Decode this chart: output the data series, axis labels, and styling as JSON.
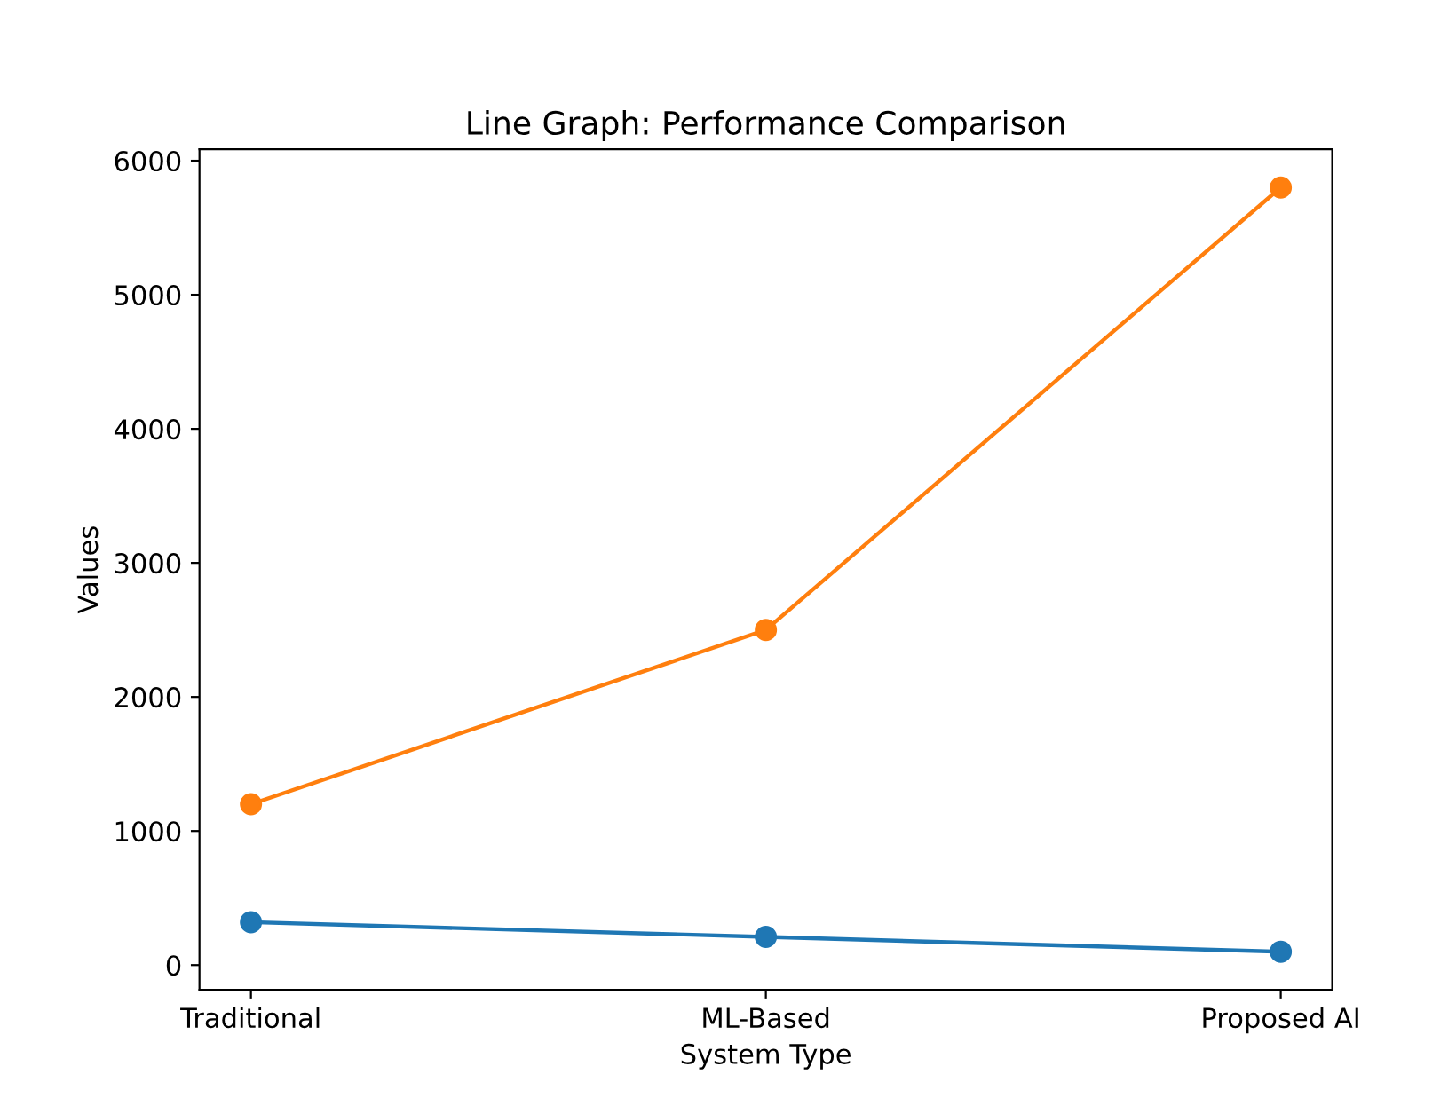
{
  "chart_data": {
    "type": "line",
    "title": "Line Graph: Performance Comparison",
    "xlabel": "System Type",
    "ylabel": "Values",
    "categories": [
      "Traditional",
      "ML-Based",
      "Proposed AI"
    ],
    "series": [
      {
        "color": "#1f77b4",
        "values": [
          320,
          210,
          100
        ]
      },
      {
        "color": "#ff7f0e",
        "values": [
          1200,
          2500,
          5800
        ]
      }
    ],
    "ylim": [
      -185,
      6085
    ],
    "yticks": [
      0,
      1000,
      2000,
      3000,
      4000,
      5000,
      6000
    ],
    "marker": "circle",
    "line_style": "solid"
  }
}
